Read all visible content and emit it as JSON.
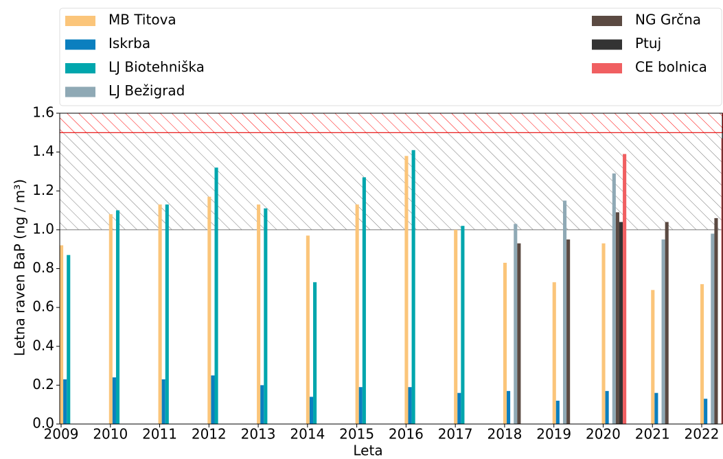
{
  "chart_data": {
    "type": "bar",
    "xlabel": "Leta",
    "ylabel": "Letna raven BaP (ng / m³)",
    "categories": [
      "2009",
      "2010",
      "2011",
      "2012",
      "2013",
      "2014",
      "2015",
      "2016",
      "2017",
      "2018",
      "2019",
      "2020",
      "2021",
      "2022"
    ],
    "series": [
      {
        "name": "MB Titova",
        "color": "#fbc57a",
        "values": [
          0.92,
          1.08,
          1.13,
          1.17,
          1.13,
          0.97,
          1.13,
          1.38,
          1.0,
          0.83,
          0.73,
          0.93,
          0.69,
          0.72
        ]
      },
      {
        "name": "Iskrba",
        "color": "#0b7fbf",
        "values": [
          0.23,
          0.24,
          0.23,
          0.25,
          0.2,
          0.14,
          0.19,
          0.19,
          0.16,
          0.17,
          0.12,
          0.17,
          0.16,
          0.13
        ]
      },
      {
        "name": "LJ Biotehniška",
        "color": "#00a6ad",
        "values": [
          0.87,
          1.1,
          1.13,
          1.32,
          1.11,
          0.73,
          1.27,
          1.41,
          1.02,
          null,
          null,
          null,
          null,
          null
        ]
      },
      {
        "name": "LJ Bežigrad",
        "color": "#8fa9b5",
        "values": [
          null,
          null,
          null,
          null,
          null,
          null,
          null,
          null,
          null,
          1.03,
          1.15,
          1.29,
          0.95,
          0.98
        ]
      },
      {
        "name": "NG Grčna",
        "color": "#5b4a42",
        "values": [
          null,
          null,
          null,
          null,
          null,
          null,
          null,
          null,
          null,
          0.93,
          0.95,
          1.09,
          1.04,
          1.06
        ]
      },
      {
        "name": "Ptuj",
        "color": "#333333",
        "values": [
          null,
          null,
          null,
          null,
          null,
          null,
          null,
          null,
          null,
          null,
          null,
          1.04,
          null,
          null
        ]
      },
      {
        "name": "CE bolnica",
        "color": "#f05f61",
        "values": [
          null,
          null,
          null,
          null,
          null,
          null,
          null,
          null,
          null,
          null,
          null,
          1.39,
          null,
          1.47
        ]
      }
    ],
    "bands": [
      {
        "from": 1.0,
        "to": 1.5,
        "color": "#777777"
      },
      {
        "from": 1.5,
        "to": 1.6,
        "color": "#ff0000"
      }
    ],
    "ylim": [
      0,
      1.6
    ],
    "yticks": [
      {
        "value": 0,
        "label": "0.0"
      },
      0.2,
      0.4,
      0.6,
      0.8,
      {
        "value": 1,
        "label": "1.0"
      },
      1.2,
      1.4,
      1.6
    ]
  }
}
